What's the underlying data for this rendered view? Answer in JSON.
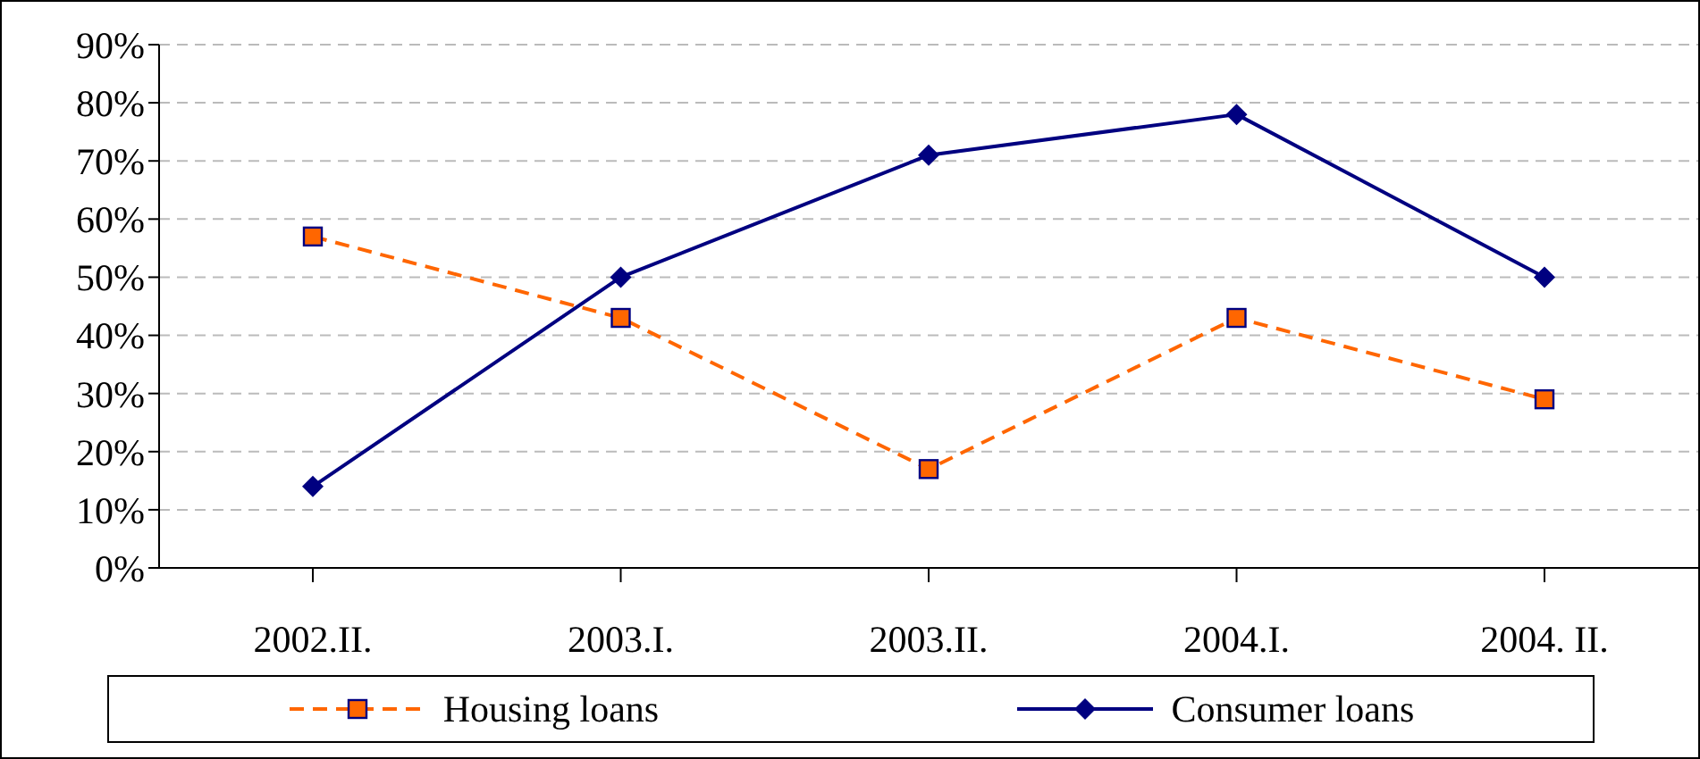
{
  "chart_data": {
    "type": "line",
    "categories": [
      "2002.II.",
      "2003.I.",
      "2003.II.",
      "2004.I.",
      "2004. II."
    ],
    "series": [
      {
        "name": "Housing loans",
        "color": "#ff6600",
        "values": [
          57,
          43,
          17,
          43,
          29
        ],
        "line_style": "dashed",
        "marker": "square"
      },
      {
        "name": "Consumer loans",
        "color": "#000080",
        "values": [
          14,
          50,
          71,
          78,
          50
        ],
        "line_style": "solid",
        "marker": "diamond"
      }
    ],
    "ylim": [
      0,
      90
    ],
    "yticks": [
      {
        "value": 0,
        "label": "0%"
      },
      {
        "value": 10,
        "label": "10%"
      },
      {
        "value": 20,
        "label": "20%"
      },
      {
        "value": 30,
        "label": "30%"
      },
      {
        "value": 40,
        "label": "40%"
      },
      {
        "value": 50,
        "label": "50%"
      },
      {
        "value": 60,
        "label": "60%"
      },
      {
        "value": 70,
        "label": "70%"
      },
      {
        "value": 80,
        "label": "80%"
      },
      {
        "value": 90,
        "label": "90%"
      }
    ],
    "grid": "y",
    "legend": "bottom"
  }
}
